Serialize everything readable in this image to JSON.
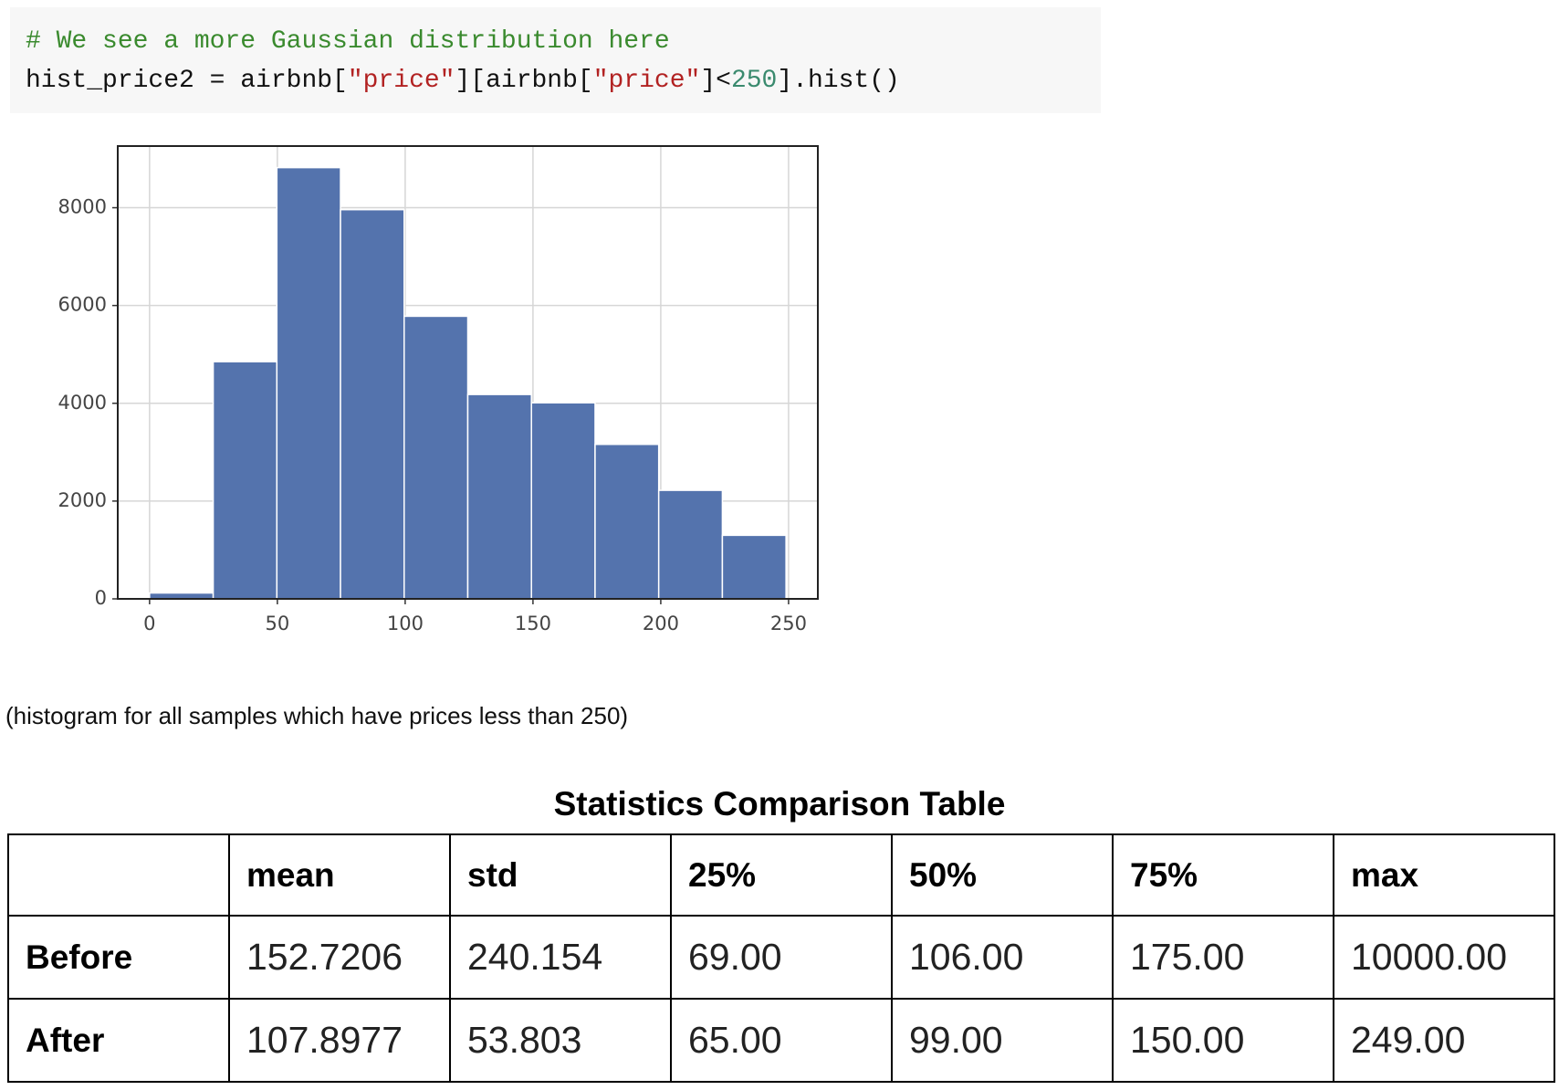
{
  "code": {
    "lines": [
      {
        "tokens": [
          {
            "text": "# We see a more Gaussian distribution here",
            "color": "#3a8a2e"
          }
        ]
      },
      {
        "tokens": [
          {
            "text": "hist_price2 = airbnb[",
            "color": "#111111"
          },
          {
            "text": "\"price\"",
            "color": "#b22222"
          },
          {
            "text": "][airbnb[",
            "color": "#111111"
          },
          {
            "text": "\"price\"",
            "color": "#b22222"
          },
          {
            "text": "]<",
            "color": "#111111"
          },
          {
            "text": "250",
            "color": "#3a8a6e"
          },
          {
            "text": "].hist()",
            "color": "#111111"
          }
        ]
      }
    ]
  },
  "chart_data": {
    "type": "histogram",
    "bins": [
      0,
      24.9,
      49.8,
      74.7,
      99.6,
      124.5,
      149.4,
      174.3,
      199.2,
      224.1,
      249
    ],
    "counts": [
      120,
      4850,
      8820,
      7960,
      5780,
      4180,
      4010,
      3160,
      2220,
      1300
    ],
    "color": "#5473ad",
    "xlim": [
      -12.45,
      261.45
    ],
    "xticks": [
      0,
      50,
      100,
      150,
      200,
      250
    ],
    "ylim": [
      0,
      9261
    ],
    "yticks": [
      0,
      2000,
      4000,
      6000,
      8000
    ],
    "grid": true
  },
  "caption": "(histogram for all samples which have prices less than 250)",
  "table": {
    "title": "Statistics Comparison Table",
    "columns": [
      "mean",
      "std",
      "25%",
      "50%",
      "75%",
      "max"
    ],
    "rows": [
      {
        "label": "Before",
        "cells": [
          "152.7206",
          "240.154",
          "69.00",
          "106.00",
          "175.00",
          "10000.00"
        ]
      },
      {
        "label": "After",
        "cells": [
          "107.8977",
          "53.803",
          "65.00",
          "99.00",
          "150.00",
          "249.00"
        ]
      }
    ]
  }
}
